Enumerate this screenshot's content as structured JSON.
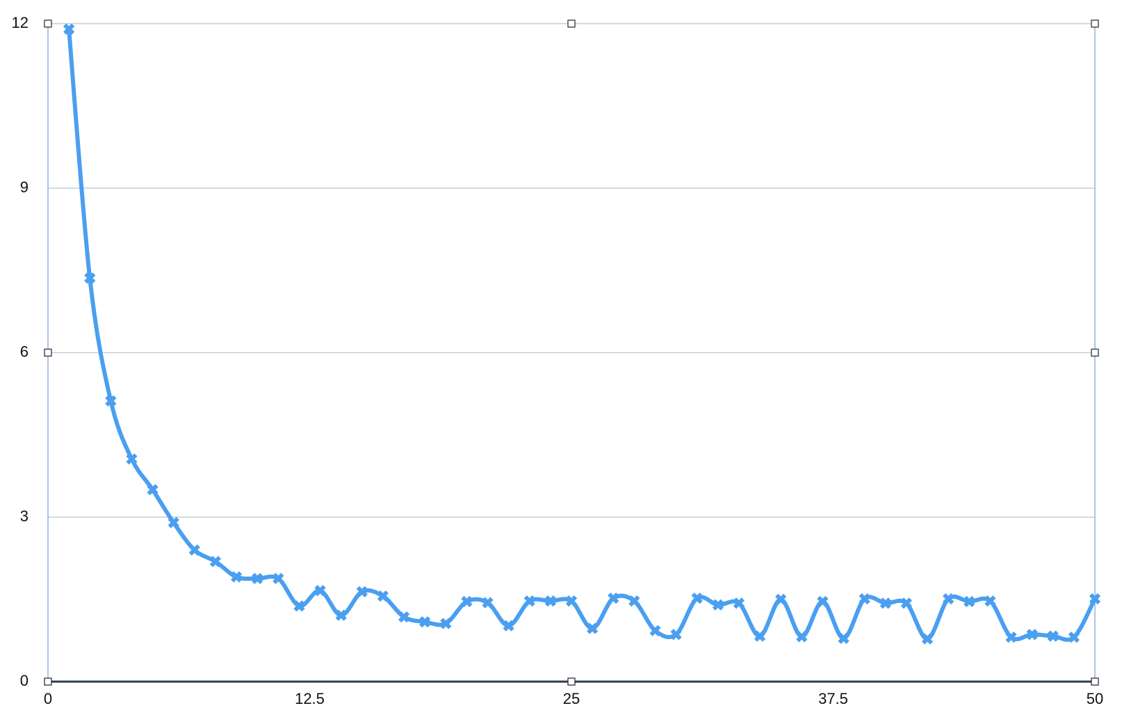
{
  "chart_data": {
    "type": "line",
    "x": [
      1,
      2,
      3,
      4,
      5,
      6,
      7,
      8,
      9,
      10,
      11,
      12,
      13,
      14,
      15,
      16,
      17,
      18,
      19,
      20,
      21,
      22,
      23,
      24,
      25,
      26,
      27,
      28,
      29,
      30,
      31,
      32,
      33,
      34,
      35,
      36,
      37,
      38,
      39,
      40,
      41,
      42,
      43,
      44,
      45,
      46,
      47,
      48,
      49,
      50
    ],
    "series": [
      {
        "color": "#4a9ff0",
        "values": [
          11.9,
          7.36,
          5.12,
          4.06,
          3.5,
          2.9,
          2.4,
          2.19,
          1.91,
          1.88,
          1.88,
          1.38,
          1.66,
          1.21,
          1.64,
          1.56,
          1.18,
          1.09,
          1.06,
          1.46,
          1.44,
          1.02,
          1.47,
          1.47,
          1.47,
          0.97,
          1.52,
          1.47,
          0.93,
          0.86,
          1.52,
          1.4,
          1.43,
          0.83,
          1.5,
          0.82,
          1.46,
          0.79,
          1.51,
          1.43,
          1.43,
          0.78,
          1.51,
          1.46,
          1.47,
          0.81,
          0.86,
          0.83,
          0.81,
          1.51
        ]
      }
    ],
    "xlim": [
      0,
      50
    ],
    "xticks": [
      0,
      12.5,
      25,
      37.5,
      50
    ],
    "ylim": [
      0,
      12
    ],
    "yticks": [
      0,
      3,
      6,
      9,
      12
    ],
    "grid": true,
    "smooth": true,
    "marker": "x"
  }
}
